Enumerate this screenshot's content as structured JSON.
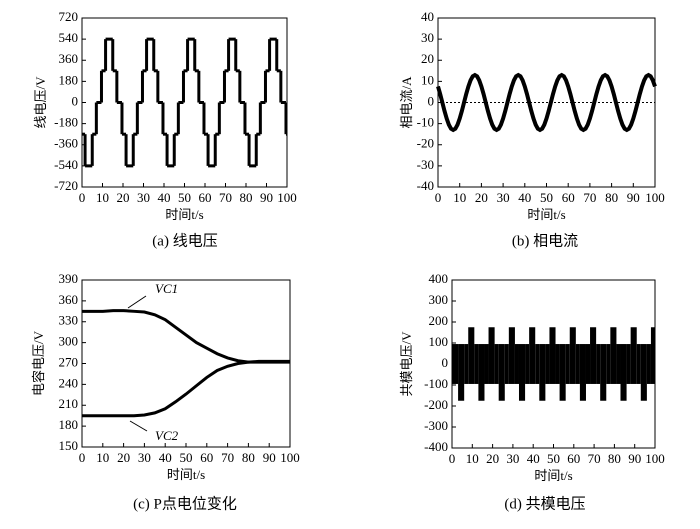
{
  "chart_data": [
    {
      "type": "step",
      "caption": "(a) 线电压",
      "xlabel": "时间t/s",
      "ylabel": "线电压/V",
      "color": "#000000",
      "x": [
        0,
        1.5,
        5,
        7,
        9.5,
        11.5,
        15,
        17,
        19.5,
        21.5,
        25,
        27,
        29.5,
        31.5,
        35,
        37,
        39.5,
        41.5,
        45,
        47,
        49.5,
        51.5,
        55,
        57,
        59.5,
        61.5,
        65,
        67,
        69.5,
        71.5,
        75,
        77,
        79.5,
        81.5,
        85,
        87,
        89.5,
        91.5,
        95,
        97,
        99.5
      ],
      "values": [
        -270,
        -540,
        -270,
        0,
        270,
        540,
        270,
        0,
        -270,
        -540,
        -270,
        0,
        270,
        540,
        270,
        0,
        -270,
        -540,
        -270,
        0,
        270,
        540,
        270,
        0,
        -270,
        -540,
        -270,
        0,
        270,
        540,
        270,
        0,
        -270,
        -540,
        -270,
        0,
        270,
        540,
        270,
        0,
        -270
      ],
      "xlim": [
        0,
        100
      ],
      "ylim": [
        -720,
        720
      ],
      "xticks": [
        0,
        10,
        20,
        30,
        40,
        50,
        60,
        70,
        80,
        90,
        100
      ],
      "yticks": [
        -720,
        -540,
        -360,
        -180,
        0,
        180,
        360,
        540,
        720
      ]
    },
    {
      "type": "line",
      "caption": "(b) 相电流",
      "xlabel": "时间t/s",
      "ylabel": "相电流/A",
      "color": "#000000",
      "zero_line": true,
      "x": [
        0,
        1,
        2,
        3,
        4,
        5,
        6,
        7,
        8,
        9,
        10,
        11,
        12,
        13,
        14,
        15,
        16,
        17,
        18,
        19,
        20,
        21,
        22,
        23,
        24,
        25,
        26,
        27,
        28,
        29,
        30,
        31,
        32,
        33,
        34,
        35,
        36,
        37,
        38,
        39,
        40,
        41,
        42,
        43,
        44,
        45,
        46,
        47,
        48,
        49,
        50,
        51,
        52,
        53,
        54,
        55,
        56,
        57,
        58,
        59,
        60,
        61,
        62,
        63,
        64,
        65,
        66,
        67,
        68,
        69,
        70,
        71,
        72,
        73,
        74,
        75,
        76,
        77,
        78,
        79,
        80,
        81,
        82,
        83,
        84,
        85,
        86,
        87,
        88,
        89,
        90,
        91,
        92,
        93,
        94,
        95,
        96,
        97,
        98,
        99,
        100
      ],
      "values": [
        7.6,
        4.0,
        0,
        -4.0,
        -7.6,
        -10.5,
        -12.4,
        -13,
        -12.4,
        -10.5,
        -7.6,
        -4.0,
        0,
        4.0,
        7.6,
        10.5,
        12.4,
        13,
        12.4,
        10.5,
        7.6,
        4.0,
        0,
        -4.0,
        -7.6,
        -10.5,
        -12.4,
        -13,
        -12.4,
        -10.5,
        -7.6,
        -4.0,
        0,
        4.0,
        7.6,
        10.5,
        12.4,
        13,
        12.4,
        10.5,
        7.6,
        4.0,
        0,
        -4.0,
        -7.6,
        -10.5,
        -12.4,
        -13,
        -12.4,
        -10.5,
        -7.6,
        -4.0,
        0,
        4.0,
        7.6,
        10.5,
        12.4,
        13,
        12.4,
        10.5,
        7.6,
        4.0,
        0,
        -4.0,
        -7.6,
        -10.5,
        -12.4,
        -13,
        -12.4,
        -10.5,
        -7.6,
        -4.0,
        0,
        4.0,
        7.6,
        10.5,
        12.4,
        13,
        12.4,
        10.5,
        7.6,
        4.0,
        0,
        -4.0,
        -7.6,
        -10.5,
        -12.4,
        -13,
        -12.4,
        -10.5,
        -7.6,
        -4.0,
        0,
        4.0,
        7.6,
        10.5,
        12.4,
        13,
        12.4,
        10.5,
        7.6
      ],
      "xlim": [
        0,
        100
      ],
      "ylim": [
        -40,
        40
      ],
      "xticks": [
        0,
        10,
        20,
        30,
        40,
        50,
        60,
        70,
        80,
        90,
        100
      ],
      "yticks": [
        -40,
        -30,
        -20,
        -10,
        0,
        10,
        20,
        30,
        40
      ]
    },
    {
      "type": "multiline",
      "caption": "(c) P点电位变化",
      "xlabel": "时间t/s",
      "ylabel": "电容电压/V",
      "x": [
        0,
        5,
        10,
        15,
        20,
        25,
        30,
        35,
        40,
        45,
        50,
        55,
        60,
        65,
        70,
        75,
        80,
        85,
        90,
        95,
        100
      ],
      "series": [
        {
          "name": "VC1",
          "color": "#000000",
          "values": [
            345,
            345,
            345,
            346,
            346,
            345,
            344,
            340,
            333,
            322,
            311,
            300,
            292,
            284,
            278,
            274,
            272,
            272,
            272,
            272,
            272
          ]
        },
        {
          "name": "VC2",
          "color": "#000000",
          "values": [
            195,
            195,
            195,
            195,
            195,
            195,
            196,
            199,
            205,
            215,
            226,
            238,
            250,
            260,
            266,
            270,
            272,
            273,
            273,
            273,
            273
          ]
        }
      ],
      "xlim": [
        0,
        100
      ],
      "ylim": [
        150,
        390
      ],
      "xticks": [
        0,
        10,
        20,
        30,
        40,
        50,
        60,
        70,
        80,
        90,
        100
      ],
      "yticks": [
        150,
        180,
        210,
        240,
        270,
        300,
        330,
        360,
        390
      ]
    },
    {
      "type": "band",
      "caption": "(d) 共模电压",
      "xlabel": "时间t/s",
      "ylabel": "共模电压/V",
      "color": "#000000",
      "x": [
        0,
        3,
        6,
        8,
        11,
        13,
        16,
        18,
        21,
        23,
        26,
        28,
        31,
        33,
        36,
        38,
        41,
        43,
        46,
        48,
        51,
        53,
        56,
        58,
        61,
        63,
        66,
        68,
        71,
        73,
        76,
        78,
        81,
        83,
        86,
        88,
        91,
        93,
        96,
        98
      ],
      "upper": [
        95,
        95,
        95,
        175,
        95,
        95,
        95,
        175,
        95,
        95,
        95,
        175,
        95,
        95,
        95,
        175,
        95,
        95,
        95,
        175,
        95,
        95,
        95,
        175,
        95,
        95,
        95,
        175,
        95,
        95,
        95,
        175,
        95,
        95,
        95,
        175,
        95,
        95,
        95,
        175
      ],
      "lower": [
        -95,
        -175,
        -95,
        -95,
        -95,
        -175,
        -95,
        -95,
        -95,
        -175,
        -95,
        -95,
        -95,
        -175,
        -95,
        -95,
        -95,
        -175,
        -95,
        -95,
        -95,
        -175,
        -95,
        -95,
        -95,
        -175,
        -95,
        -95,
        -95,
        -175,
        -95,
        -95,
        -95,
        -175,
        -95,
        -95,
        -95,
        -175,
        -95,
        -95
      ],
      "xlim": [
        0,
        100
      ],
      "ylim": [
        -400,
        400
      ],
      "xticks": [
        0,
        10,
        20,
        30,
        40,
        50,
        60,
        70,
        80,
        90,
        100
      ],
      "yticks": [
        -400,
        -300,
        -200,
        -100,
        0,
        100,
        200,
        300,
        400
      ]
    }
  ]
}
